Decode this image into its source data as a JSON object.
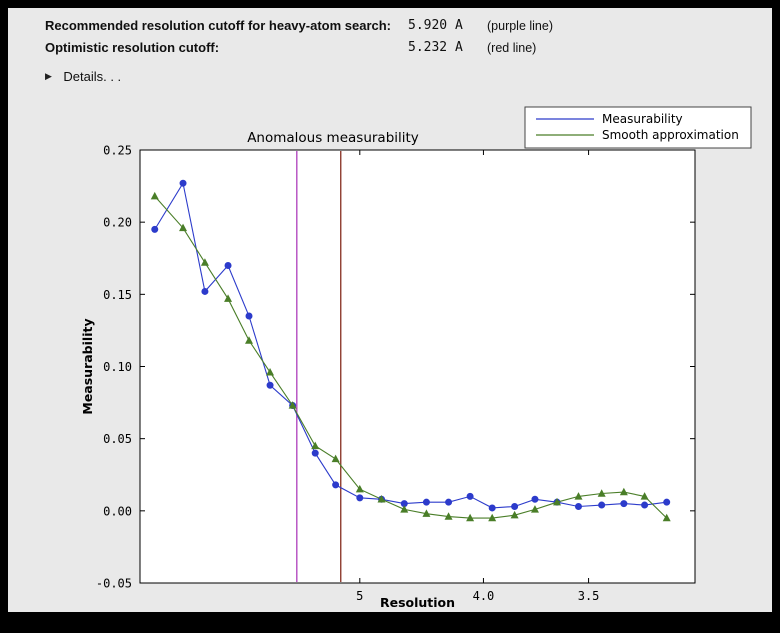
{
  "header": {
    "rows": [
      {
        "label": "Recommended resolution cutoff for heavy-atom search:",
        "value": "5.920 A",
        "note": "(purple line)"
      },
      {
        "label": "Optimistic resolution cutoff:",
        "value": "5.232 A",
        "note": "(red line)"
      }
    ],
    "details_label": "Details. . ."
  },
  "chart_data": {
    "type": "line",
    "title": "Anomalous measurability",
    "xlabel": "Resolution",
    "ylabel": "Measurability",
    "x_scale": "1/d^2",
    "legend_position": "upper right",
    "grid": false,
    "ylim": [
      -0.05,
      0.25
    ],
    "s_range": [
      0,
      0.101
    ],
    "x_resolution_A": [
      19.3,
      11.3,
      9.2,
      7.9,
      7.1,
      6.5,
      6.0,
      5.6,
      5.3,
      5.0,
      4.77,
      4.56,
      4.38,
      4.22,
      4.08,
      3.95,
      3.83,
      3.73,
      3.63,
      3.54,
      3.45,
      3.37,
      3.3,
      3.23
    ],
    "series": [
      {
        "name": "Measurability",
        "color": "#2c3bcb",
        "marker": "circle",
        "values": [
          0.195,
          0.227,
          0.152,
          0.17,
          0.135,
          0.087,
          0.073,
          0.04,
          0.018,
          0.009,
          0.008,
          0.005,
          0.006,
          0.006,
          0.01,
          0.002,
          0.003,
          0.008,
          0.006,
          0.003,
          0.004,
          0.005,
          0.004,
          0.006
        ]
      },
      {
        "name": "Smooth approximation",
        "color": "#4a7e28",
        "marker": "triangle",
        "values": [
          0.218,
          0.196,
          0.172,
          0.147,
          0.118,
          0.096,
          0.073,
          0.045,
          0.036,
          0.015,
          0.008,
          0.001,
          -0.002,
          -0.004,
          -0.005,
          -0.005,
          -0.003,
          0.001,
          0.006,
          0.01,
          0.012,
          0.013,
          0.01,
          -0.005
        ]
      }
    ],
    "vlines": [
      {
        "label": "purple-line",
        "resolution_A": 5.92,
        "color": "#b44cc0"
      },
      {
        "label": "red-line",
        "resolution_A": 5.232,
        "color": "#8e3b2e"
      }
    ],
    "yticks": [
      {
        "v": 0.25,
        "label": "0.25"
      },
      {
        "v": 0.2,
        "label": "0.20"
      },
      {
        "v": 0.15,
        "label": "0.15"
      },
      {
        "v": 0.1,
        "label": "0.10"
      },
      {
        "v": 0.05,
        "label": "0.05"
      },
      {
        "v": 0.0,
        "label": "0.00"
      },
      {
        "v": -0.05,
        "label": "-0.05"
      }
    ],
    "xticks": [
      {
        "d": 5.0,
        "label": "5"
      },
      {
        "d": 4.0,
        "label": "4.0"
      },
      {
        "d": 3.5,
        "label": "3.5"
      }
    ]
  }
}
